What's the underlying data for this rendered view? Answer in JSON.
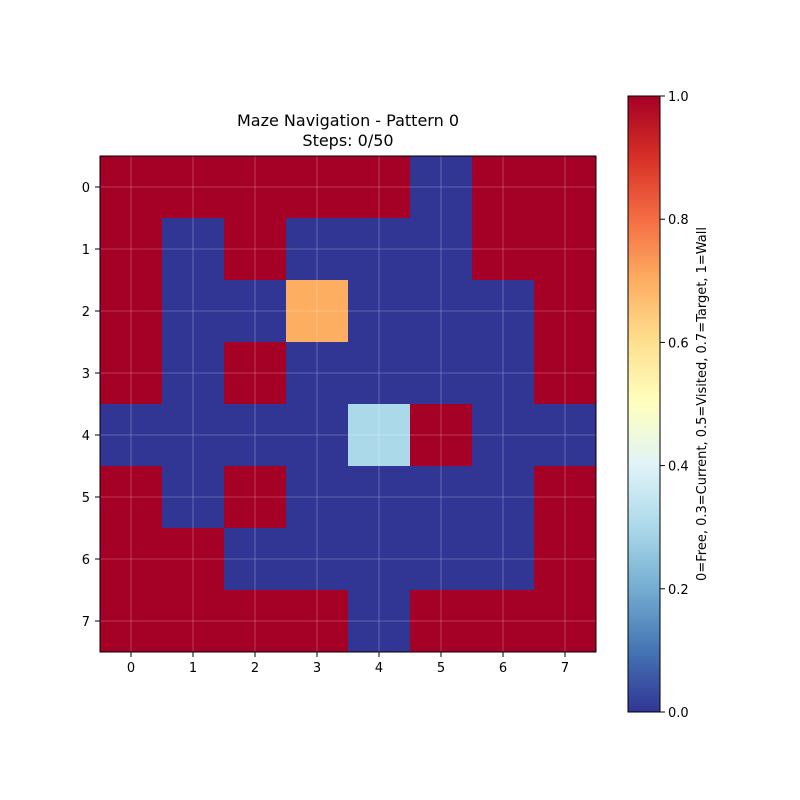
{
  "chart_data": {
    "type": "heatmap",
    "title": "Maze Navigation - Pattern 0",
    "subtitle": "Steps: 0/50",
    "x_ticks": [
      "0",
      "1",
      "2",
      "3",
      "4",
      "5",
      "6",
      "7"
    ],
    "y_ticks": [
      "0",
      "1",
      "2",
      "3",
      "4",
      "5",
      "6",
      "7"
    ],
    "grid": true,
    "colormap": "RdYlBu_r",
    "vmin": 0.0,
    "vmax": 1.0,
    "colorbar": {
      "label": "0=Free, 0.3=Current, 0.5=Visited, 0.7=Target, 1=Wall",
      "ticks": [
        "0.0",
        "0.2",
        "0.4",
        "0.6",
        "0.8",
        "1.0"
      ],
      "tick_values": [
        0.0,
        0.2,
        0.4,
        0.6,
        0.8,
        1.0
      ],
      "placement": "right"
    },
    "values": [
      [
        1,
        1,
        1,
        1,
        1,
        0,
        1,
        1
      ],
      [
        1,
        0,
        1,
        0,
        0,
        0,
        1,
        1
      ],
      [
        1,
        0,
        0,
        0.7,
        0,
        0,
        0,
        1
      ],
      [
        1,
        0,
        1,
        0,
        0,
        0,
        0,
        1
      ],
      [
        0,
        0,
        0,
        0,
        0.3,
        1,
        0,
        0
      ],
      [
        1,
        0,
        1,
        0,
        0,
        0,
        0,
        1
      ],
      [
        1,
        1,
        0,
        0,
        0,
        0,
        0,
        1
      ],
      [
        1,
        1,
        1,
        1,
        0,
        1,
        1,
        1
      ]
    ]
  }
}
